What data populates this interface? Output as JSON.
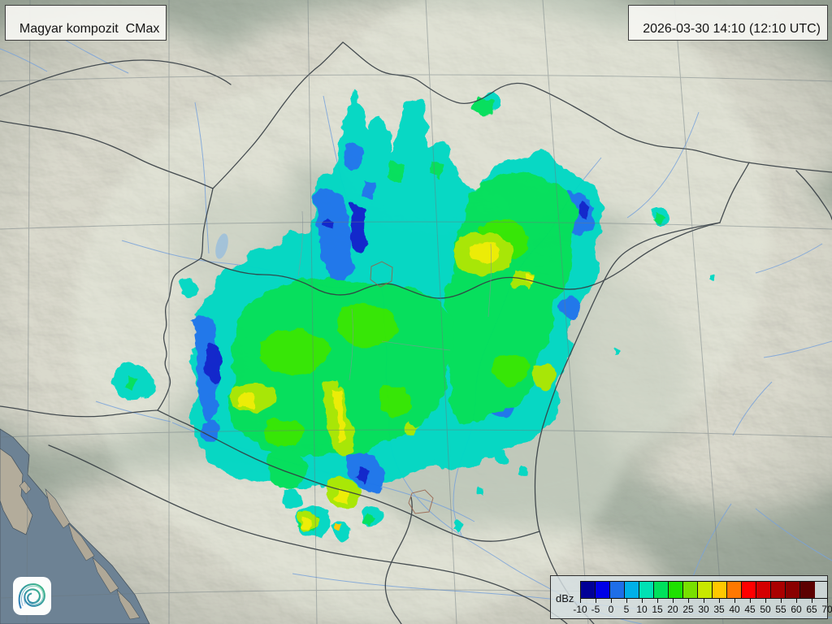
{
  "product_box": {
    "label": "Magyar kompozit  CMax"
  },
  "time_box": {
    "timestamp": "2026-03-30 14:10 (12:10 UTC)"
  },
  "legend": {
    "unit_label": "dBz",
    "tick_labels": [
      "-10",
      "-5",
      "0",
      "5",
      "10",
      "15",
      "20",
      "25",
      "30",
      "35",
      "40",
      "45",
      "50",
      "55",
      "60",
      "65",
      "70"
    ],
    "cell_colors": [
      "#000096",
      "#0000e8",
      "#1e6ee8",
      "#00b0e8",
      "#00e0b4",
      "#00e05c",
      "#1ee000",
      "#78e000",
      "#c8e800",
      "#ffc800",
      "#ff7800",
      "#ff0000",
      "#d40000",
      "#aa0000",
      "#8a0000",
      "#5c0000"
    ]
  },
  "logo": {
    "name": "meteorological-service-spiral-logo"
  },
  "map_colors": {
    "sea": "#6d8294",
    "terrain_base": "#a7b2a4",
    "terrain_inside_radar_wash": "#eef4e6",
    "country_border": "#343c42",
    "river": "#7aa3da",
    "grid": "#6b787e"
  }
}
